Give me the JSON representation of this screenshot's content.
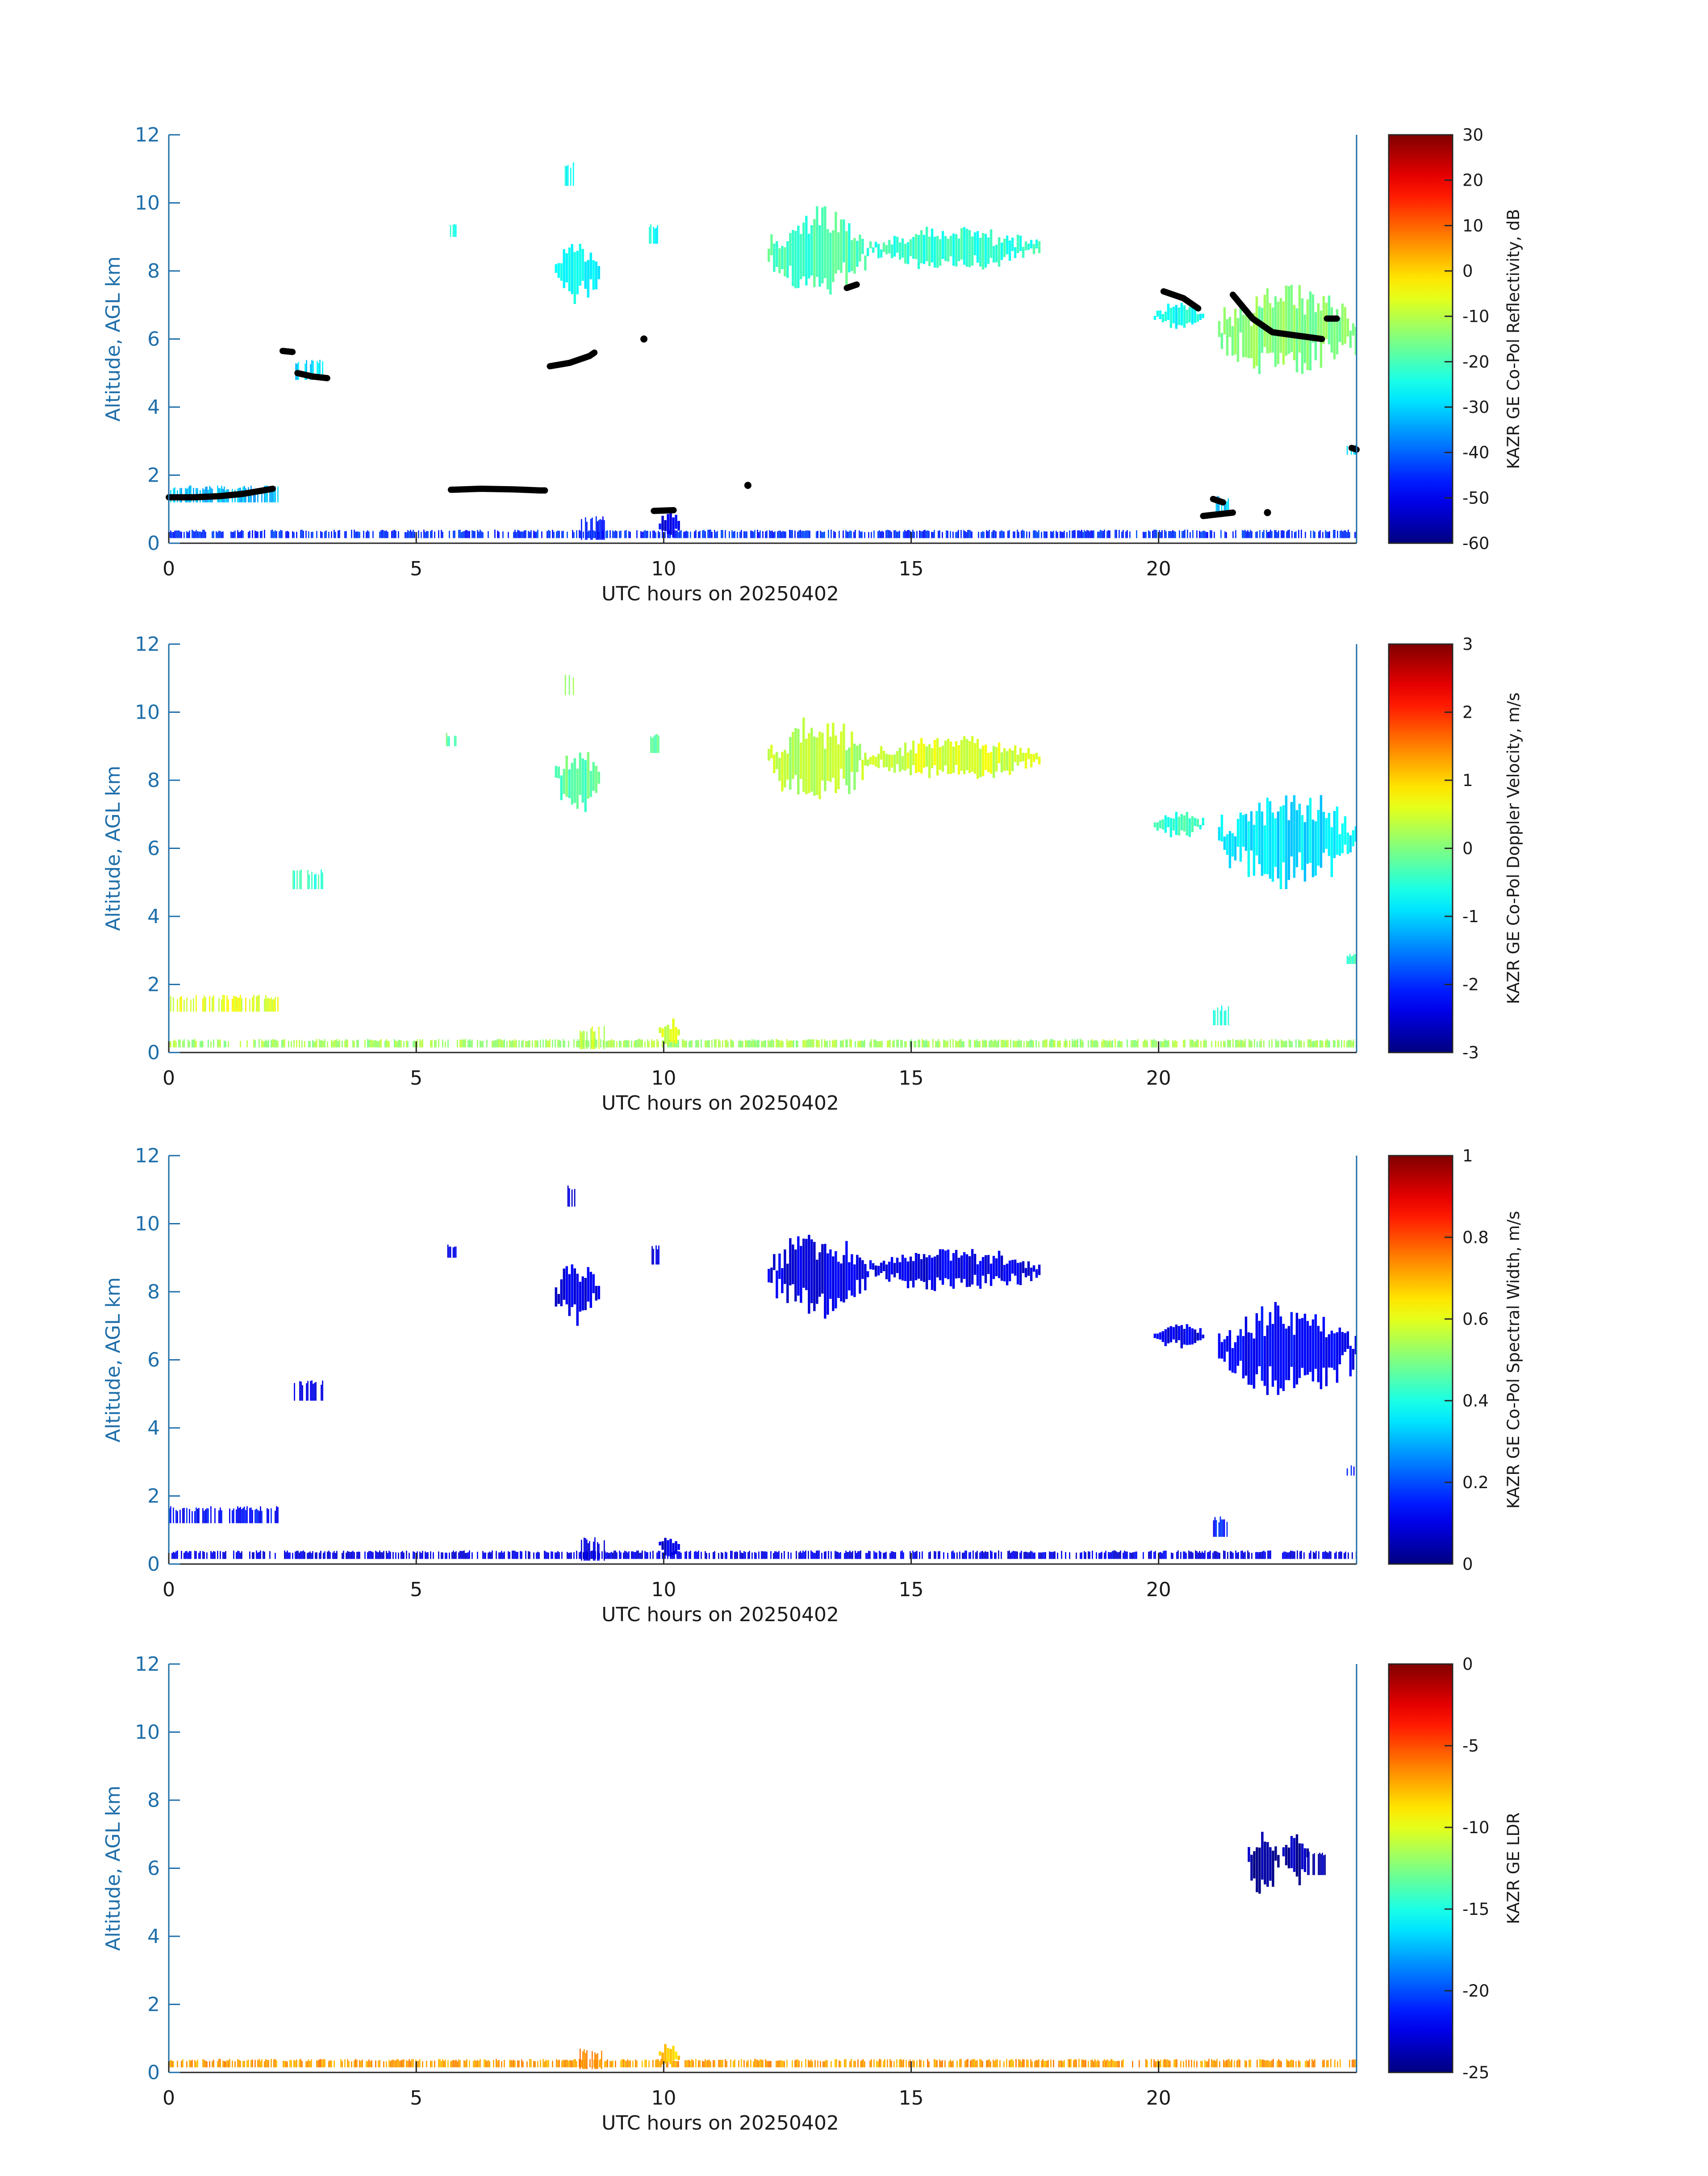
{
  "chart_data": [
    {
      "type": "heatmap",
      "xlabel": "UTC hours on 20250402",
      "ylabel": "Altitude, AGL km",
      "xlim": [
        0,
        24
      ],
      "ylim": [
        0,
        12
      ],
      "xticks": [
        "0",
        "5",
        "10",
        "15",
        "20"
      ],
      "yticks": [
        "0",
        "2",
        "4",
        "6",
        "8",
        "10",
        "12"
      ],
      "colorbar": {
        "label": "KAZR GE Co-Pol Reflectivity, dB",
        "min": -60,
        "max": 30,
        "ticks": [
          "-60",
          "-50",
          "-40",
          "-30",
          "-20",
          "-10",
          "0",
          "10",
          "20",
          "30"
        ]
      },
      "echoes": [
        {
          "x0": 12.1,
          "x1": 14.1,
          "y0": 7.2,
          "y1": 9.9,
          "value": -20
        },
        {
          "x0": 14.1,
          "x1": 17.6,
          "y0": 8.0,
          "y1": 9.3,
          "value": -22
        },
        {
          "x0": 7.8,
          "x1": 8.7,
          "y0": 7.0,
          "y1": 9.0,
          "value": -27
        },
        {
          "x0": 8.0,
          "x1": 8.2,
          "y0": 10.5,
          "y1": 11.2,
          "value": -25
        },
        {
          "x0": 5.6,
          "x1": 5.8,
          "y0": 9.0,
          "y1": 9.4,
          "value": -25
        },
        {
          "x0": 9.7,
          "x1": 9.9,
          "y0": 8.8,
          "y1": 9.4,
          "value": -25
        },
        {
          "x0": 19.9,
          "x1": 20.9,
          "y0": 6.3,
          "y1": 7.1,
          "value": -25
        },
        {
          "x0": 21.2,
          "x1": 24.0,
          "y0": 4.8,
          "y1": 7.7,
          "value": -14
        },
        {
          "x0": 2.5,
          "x1": 3.1,
          "y0": 4.8,
          "y1": 5.4,
          "value": -30
        },
        {
          "x0": 0.0,
          "x1": 2.2,
          "y0": 1.2,
          "y1": 1.7,
          "value": -32
        },
        {
          "x0": 21.1,
          "x1": 21.4,
          "y0": 0.8,
          "y1": 1.4,
          "value": -30
        },
        {
          "x0": 23.8,
          "x1": 24.0,
          "y0": 2.6,
          "y1": 2.9,
          "value": -28
        },
        {
          "x0": 0.0,
          "x1": 24.0,
          "y0": 0.15,
          "y1": 0.4,
          "value": -45
        },
        {
          "x0": 8.3,
          "x1": 8.8,
          "y0": 0.1,
          "y1": 0.8,
          "value": -48
        },
        {
          "x0": 9.9,
          "x1": 10.3,
          "y0": 0.1,
          "y1": 1.0,
          "value": -50
        }
      ],
      "cloud_base": [
        {
          "x": [
            0.0,
            0.5,
            1.0,
            1.5,
            2.1
          ],
          "y": [
            1.35,
            1.35,
            1.38,
            1.45,
            1.6
          ]
        },
        {
          "x": [
            5.7,
            6.3,
            7.0,
            7.5,
            7.6
          ],
          "y": [
            1.57,
            1.6,
            1.58,
            1.55,
            1.55
          ]
        },
        {
          "x": [
            7.7,
            8.1,
            8.5,
            8.6
          ],
          "y": [
            5.2,
            5.3,
            5.5,
            5.6
          ]
        },
        {
          "x": [
            2.3,
            2.5
          ],
          "y": [
            5.65,
            5.62
          ]
        },
        {
          "x": [
            2.6,
            2.9,
            3.2
          ],
          "y": [
            5.0,
            4.9,
            4.85
          ]
        },
        {
          "x": [
            9.6
          ],
          "y": [
            6.0
          ]
        },
        {
          "x": [
            9.8,
            10.2
          ],
          "y": [
            0.95,
            0.97
          ]
        },
        {
          "x": [
            11.7
          ],
          "y": [
            1.7
          ]
        },
        {
          "x": [
            13.7,
            13.9
          ],
          "y": [
            7.5,
            7.6
          ]
        },
        {
          "x": [
            20.1,
            20.5,
            20.8
          ],
          "y": [
            7.4,
            7.2,
            6.9
          ]
        },
        {
          "x": [
            21.5,
            21.9,
            22.3,
            22.8,
            23.3
          ],
          "y": [
            7.3,
            6.6,
            6.2,
            6.1,
            6.0
          ]
        },
        {
          "x": [
            23.4,
            23.6
          ],
          "y": [
            6.6,
            6.6
          ]
        },
        {
          "x": [
            21.1,
            21.3
          ],
          "y": [
            1.3,
            1.2
          ]
        },
        {
          "x": [
            20.9,
            21.5
          ],
          "y": [
            0.8,
            0.9
          ]
        },
        {
          "x": [
            22.2
          ],
          "y": [
            0.9
          ]
        },
        {
          "x": [
            23.9,
            24.0
          ],
          "y": [
            2.8,
            2.75
          ]
        }
      ]
    },
    {
      "type": "heatmap",
      "xlabel": "UTC hours on 20250402",
      "ylabel": "Altitude, AGL km",
      "xlim": [
        0,
        24
      ],
      "ylim": [
        0,
        12
      ],
      "xticks": [
        "0",
        "5",
        "10",
        "15",
        "20"
      ],
      "yticks": [
        "0",
        "2",
        "4",
        "6",
        "8",
        "10",
        "12"
      ],
      "colorbar": {
        "label": "KAZR GE Co-Pol Doppler Velocity, m/s",
        "min": -3,
        "max": 3,
        "ticks": [
          "-3",
          "-2",
          "-1",
          "0",
          "1",
          "2",
          "3"
        ]
      },
      "echoes": [
        {
          "x0": 12.1,
          "x1": 14.1,
          "y0": 7.2,
          "y1": 9.9,
          "value": 0.3
        },
        {
          "x0": 14.1,
          "x1": 17.6,
          "y0": 8.0,
          "y1": 9.3,
          "value": 0.5
        },
        {
          "x0": 7.8,
          "x1": 8.7,
          "y0": 7.0,
          "y1": 9.0,
          "value": -0.2
        },
        {
          "x0": 8.0,
          "x1": 8.2,
          "y0": 10.5,
          "y1": 11.2,
          "value": 0.2
        },
        {
          "x0": 5.6,
          "x1": 5.8,
          "y0": 9.0,
          "y1": 9.4,
          "value": -0.2
        },
        {
          "x0": 9.7,
          "x1": 9.9,
          "y0": 8.8,
          "y1": 9.4,
          "value": -0.1
        },
        {
          "x0": 19.9,
          "x1": 20.9,
          "y0": 6.3,
          "y1": 7.1,
          "value": -0.4
        },
        {
          "x0": 21.2,
          "x1": 24.0,
          "y0": 4.8,
          "y1": 7.7,
          "value": -0.9
        },
        {
          "x0": 2.5,
          "x1": 3.1,
          "y0": 4.8,
          "y1": 5.4,
          "value": -0.4
        },
        {
          "x0": 0.0,
          "x1": 2.2,
          "y0": 1.2,
          "y1": 1.7,
          "value": 0.6
        },
        {
          "x0": 21.1,
          "x1": 21.4,
          "y0": 0.8,
          "y1": 1.4,
          "value": -0.6
        },
        {
          "x0": 23.8,
          "x1": 24.0,
          "y0": 2.6,
          "y1": 2.9,
          "value": -0.4
        },
        {
          "x0": 0.0,
          "x1": 24.0,
          "y0": 0.15,
          "y1": 0.4,
          "value": 0.2
        },
        {
          "x0": 8.3,
          "x1": 8.8,
          "y0": 0.1,
          "y1": 0.8,
          "value": 0.4
        },
        {
          "x0": 9.9,
          "x1": 10.3,
          "y0": 0.1,
          "y1": 1.0,
          "value": 0.5
        }
      ]
    },
    {
      "type": "heatmap",
      "xlabel": "UTC hours on 20250402",
      "ylabel": "Altitude, AGL km",
      "xlim": [
        0,
        24
      ],
      "ylim": [
        0,
        12
      ],
      "xticks": [
        "0",
        "5",
        "10",
        "15",
        "20"
      ],
      "yticks": [
        "0",
        "2",
        "4",
        "6",
        "8",
        "10",
        "12"
      ],
      "colorbar": {
        "label": "KAZR GE Co-Pol Spectral Width, m/s",
        "min": 0,
        "max": 1,
        "ticks": [
          "0",
          "0.2",
          "0.4",
          "0.6",
          "0.8",
          "1"
        ]
      },
      "echoes": [
        {
          "x0": 12.1,
          "x1": 14.1,
          "y0": 7.2,
          "y1": 9.9,
          "value": 0.1
        },
        {
          "x0": 14.1,
          "x1": 17.6,
          "y0": 8.0,
          "y1": 9.3,
          "value": 0.1
        },
        {
          "x0": 7.8,
          "x1": 8.7,
          "y0": 7.0,
          "y1": 9.0,
          "value": 0.1
        },
        {
          "x0": 8.0,
          "x1": 8.2,
          "y0": 10.5,
          "y1": 11.2,
          "value": 0.1
        },
        {
          "x0": 5.6,
          "x1": 5.8,
          "y0": 9.0,
          "y1": 9.4,
          "value": 0.1
        },
        {
          "x0": 9.7,
          "x1": 9.9,
          "y0": 8.8,
          "y1": 9.4,
          "value": 0.1
        },
        {
          "x0": 19.9,
          "x1": 20.9,
          "y0": 6.3,
          "y1": 7.1,
          "value": 0.1
        },
        {
          "x0": 21.2,
          "x1": 24.0,
          "y0": 4.8,
          "y1": 7.7,
          "value": 0.12
        },
        {
          "x0": 2.5,
          "x1": 3.1,
          "y0": 4.8,
          "y1": 5.4,
          "value": 0.1
        },
        {
          "x0": 0.0,
          "x1": 2.2,
          "y0": 1.2,
          "y1": 1.7,
          "value": 0.13
        },
        {
          "x0": 21.1,
          "x1": 21.4,
          "y0": 0.8,
          "y1": 1.4,
          "value": 0.15
        },
        {
          "x0": 23.8,
          "x1": 24.0,
          "y0": 2.6,
          "y1": 2.9,
          "value": 0.15
        },
        {
          "x0": 0.0,
          "x1": 24.0,
          "y0": 0.15,
          "y1": 0.4,
          "value": 0.1
        },
        {
          "x0": 8.3,
          "x1": 8.8,
          "y0": 0.1,
          "y1": 0.8,
          "value": 0.1
        },
        {
          "x0": 9.9,
          "x1": 10.3,
          "y0": 0.1,
          "y1": 1.0,
          "value": 0.1
        }
      ]
    },
    {
      "type": "heatmap",
      "xlabel": "UTC hours on 20250402",
      "ylabel": "Altitude, AGL km",
      "xlim": [
        0,
        24
      ],
      "ylim": [
        0,
        12
      ],
      "xticks": [
        "0",
        "5",
        "10",
        "15",
        "20"
      ],
      "yticks": [
        "0",
        "2",
        "4",
        "6",
        "8",
        "10",
        "12"
      ],
      "colorbar": {
        "label": "KAZR GE LDR",
        "min": -25,
        "max": 0,
        "ticks": [
          "-25",
          "-20",
          "-15",
          "-10",
          "-5",
          "0"
        ]
      },
      "echoes": [
        {
          "x0": 21.8,
          "x1": 22.4,
          "y0": 5.1,
          "y1": 7.3,
          "value": -24
        },
        {
          "x0": 22.5,
          "x1": 23.0,
          "y0": 5.5,
          "y1": 7.1,
          "value": -24
        },
        {
          "x0": 23.0,
          "x1": 23.4,
          "y0": 5.8,
          "y1": 6.5,
          "value": -24
        },
        {
          "x0": 0.0,
          "x1": 24.0,
          "y0": 0.15,
          "y1": 0.4,
          "value": -7
        },
        {
          "x0": 8.3,
          "x1": 8.8,
          "y0": 0.1,
          "y1": 0.7,
          "value": -6
        },
        {
          "x0": 9.9,
          "x1": 10.3,
          "y0": 0.1,
          "y1": 0.9,
          "value": -8
        }
      ]
    }
  ]
}
